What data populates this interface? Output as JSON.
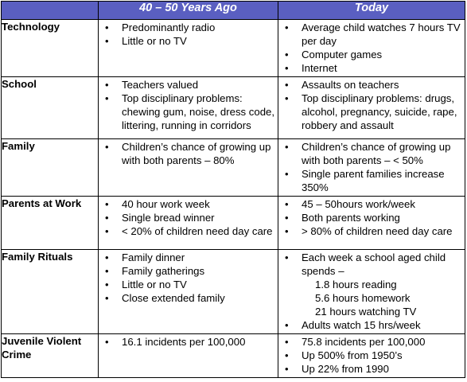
{
  "header": {
    "past": "40 – 50 Years Ago",
    "today": "Today"
  },
  "rows": [
    {
      "category": "Technology",
      "past": [
        {
          "text": "Predominantly radio"
        },
        {
          "text": "Little or no TV"
        }
      ],
      "today": [
        {
          "text": "Average child watches 7 hours TV per day"
        },
        {
          "text": "Computer games"
        },
        {
          "text": "Internet"
        }
      ]
    },
    {
      "category": "School",
      "past": [
        {
          "text": "Teachers valued"
        },
        {
          "text": "Top disciplinary problems: chewing gum, noise, dress code, littering, running in corridors"
        }
      ],
      "today": [
        {
          "text": "Assaults on teachers"
        },
        {
          "text": "Top disciplinary problems: drugs, alcohol, pregnancy, suicide, rape, robbery and assault"
        }
      ]
    },
    {
      "category": "Family",
      "past": [
        {
          "text": "Children’s chance of growing up with both parents – 80%"
        }
      ],
      "today": [
        {
          "text": "Children’s chance of growing up with both parents –  < 50%"
        },
        {
          "text": "Single parent families increase 350%"
        }
      ]
    },
    {
      "category": "Parents at Work",
      "past": [
        {
          "text": "40 hour work week"
        },
        {
          "text": "Single bread winner"
        },
        {
          "text": "< 20% of children need day care"
        }
      ],
      "today": [
        {
          "text": "45 – 50hours work/week"
        },
        {
          "text": "Both parents working"
        },
        {
          "text": "> 80% of children need day care"
        }
      ]
    },
    {
      "category": "Family Rituals",
      "past": [
        {
          "text": "Family dinner"
        },
        {
          "text": "Family gatherings"
        },
        {
          "text": "Little or no TV"
        },
        {
          "text": "Close extended family"
        }
      ],
      "today": [
        {
          "text": "Each week  a school aged child spends –"
        },
        {
          "text": "1.8 hours reading",
          "sub": true
        },
        {
          "text": "5.6 hours homework",
          "sub": true
        },
        {
          "text": "21 hours watching TV",
          "sub": true
        },
        {
          "text": "Adults watch 15 hrs/week"
        }
      ]
    },
    {
      "category": "Juvenile Violent Crime",
      "past": [
        {
          "text": "16.1 incidents per 100,000"
        }
      ],
      "today": [
        {
          "text": "75.8 incidents per 100,000"
        },
        {
          "text": "Up 500% from 1950’s"
        },
        {
          "text": "Up 22% from 1990"
        }
      ]
    }
  ]
}
